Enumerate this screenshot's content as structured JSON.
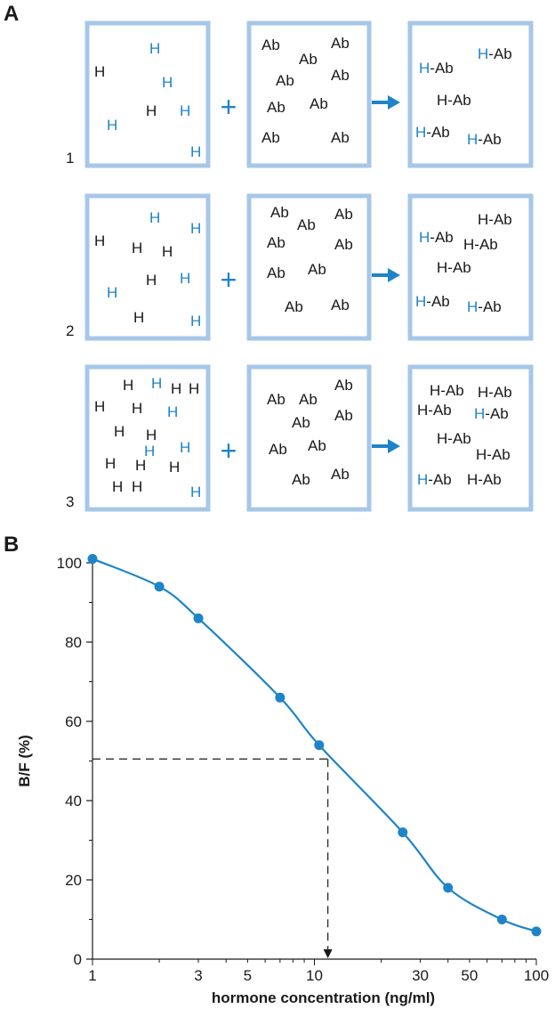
{
  "panel_a": {
    "letter": "A",
    "plus": "+",
    "rows": [
      {
        "number": "1",
        "h_box": [
          {
            "t": "H",
            "c": "blu"
          },
          {
            "t": "H",
            "c": "blk"
          },
          {
            "t": "H",
            "c": "blu"
          },
          {
            "t": "H",
            "c": "blu"
          },
          {
            "t": "H",
            "c": "blk"
          },
          {
            "t": "H",
            "c": "blu"
          },
          {
            "t": "H",
            "c": "blu"
          }
        ],
        "ab_box": [
          "Ab",
          "Ab",
          "Ab",
          "Ab",
          "Ab",
          "Ab",
          "Ab",
          "Ab",
          "Ab"
        ],
        "result_box": [
          {
            "h": "H",
            "c": "blu",
            "ab": "-Ab"
          },
          {
            "h": "H",
            "c": "blu",
            "ab": "-Ab"
          },
          {
            "h": "H",
            "c": "blk",
            "ab": "-Ab"
          },
          {
            "h": "H",
            "c": "blu",
            "ab": "-Ab"
          },
          {
            "h": "H",
            "c": "blu",
            "ab": "-Ab"
          }
        ]
      },
      {
        "number": "2",
        "h_box": [
          {
            "t": "H",
            "c": "blu"
          },
          {
            "t": "H",
            "c": "blk"
          },
          {
            "t": "H",
            "c": "blk"
          },
          {
            "t": "H",
            "c": "blk"
          },
          {
            "t": "H",
            "c": "blu"
          },
          {
            "t": "H",
            "c": "blu"
          },
          {
            "t": "H",
            "c": "blk"
          },
          {
            "t": "H",
            "c": "blu"
          },
          {
            "t": "H",
            "c": "blk"
          },
          {
            "t": "H",
            "c": "blu"
          }
        ],
        "ab_box": [
          "Ab",
          "Ab",
          "Ab",
          "Ab",
          "Ab",
          "Ab",
          "Ab",
          "Ab",
          "Ab"
        ],
        "result_box": [
          {
            "h": "H",
            "c": "blk",
            "ab": "-Ab"
          },
          {
            "h": "H",
            "c": "blu",
            "ab": "-Ab"
          },
          {
            "h": "H",
            "c": "blk",
            "ab": "-Ab"
          },
          {
            "h": "H",
            "c": "blk",
            "ab": "-Ab"
          },
          {
            "h": "H",
            "c": "blu",
            "ab": "-Ab"
          },
          {
            "h": "H",
            "c": "blu",
            "ab": "-Ab"
          }
        ]
      },
      {
        "number": "3",
        "h_box": [
          {
            "t": "H",
            "c": "blk"
          },
          {
            "t": "H",
            "c": "blu"
          },
          {
            "t": "H",
            "c": "blk"
          },
          {
            "t": "H",
            "c": "blk"
          },
          {
            "t": "H",
            "c": "blk"
          },
          {
            "t": "H",
            "c": "blk"
          },
          {
            "t": "H",
            "c": "blu"
          },
          {
            "t": "H",
            "c": "blk"
          },
          {
            "t": "H",
            "c": "blk"
          },
          {
            "t": "H",
            "c": "blu"
          },
          {
            "t": "H",
            "c": "blk"
          },
          {
            "t": "H",
            "c": "blu"
          },
          {
            "t": "H",
            "c": "blk"
          },
          {
            "t": "H",
            "c": "blk"
          },
          {
            "t": "H",
            "c": "blk"
          },
          {
            "t": "H",
            "c": "blk"
          },
          {
            "t": "H",
            "c": "blu"
          }
        ],
        "ab_box": [
          "Ab",
          "Ab",
          "Ab",
          "Ab",
          "Ab",
          "Ab",
          "Ab",
          "Ab",
          "Ab"
        ],
        "result_box": [
          {
            "h": "H",
            "c": "blk",
            "ab": "-Ab"
          },
          {
            "h": "H",
            "c": "blk",
            "ab": "-Ab"
          },
          {
            "h": "H",
            "c": "blk",
            "ab": "-Ab"
          },
          {
            "h": "H",
            "c": "blu",
            "ab": "-Ab"
          },
          {
            "h": "H",
            "c": "blk",
            "ab": "-Ab"
          },
          {
            "h": "H",
            "c": "blk",
            "ab": "-Ab"
          },
          {
            "h": "H",
            "c": "blu",
            "ab": "-Ab"
          },
          {
            "h": "H",
            "c": "blk",
            "ab": "-Ab"
          }
        ]
      }
    ]
  },
  "panel_b": {
    "letter": "B"
  },
  "colors": {
    "box_border": "#a7c7e7",
    "accent_blue": "#1e84c8",
    "text_dark": "#1a1a1a"
  },
  "chart_data": {
    "type": "line",
    "xlabel": "hormone concentration (ng/ml)",
    "ylabel": "B/F (%)",
    "x_scale": "log",
    "xlim": [
      1,
      100
    ],
    "ylim": [
      0,
      100
    ],
    "x_ticks": [
      {
        "value": 1,
        "label": "1"
      },
      {
        "value": 3,
        "label": "3"
      },
      {
        "value": 5,
        "label": "5"
      },
      {
        "value": 10,
        "label": "10"
      },
      {
        "value": 30,
        "label": "30"
      },
      {
        "value": 50,
        "label": "50"
      },
      {
        "value": 100,
        "label": "100"
      }
    ],
    "y_ticks": [
      {
        "value": 0,
        "label": "0"
      },
      {
        "value": 20,
        "label": "20"
      },
      {
        "value": 40,
        "label": "40"
      },
      {
        "value": 60,
        "label": "60"
      },
      {
        "value": 80,
        "label": "80"
      },
      {
        "value": 100,
        "label": "100"
      }
    ],
    "x": [
      1,
      2,
      3,
      7,
      10.5,
      25,
      40,
      70,
      100
    ],
    "y": [
      101,
      94,
      86,
      66,
      54,
      32,
      18,
      10,
      7
    ],
    "reference_line": {
      "y": 50.5,
      "x": 11.5
    },
    "grid": false
  }
}
